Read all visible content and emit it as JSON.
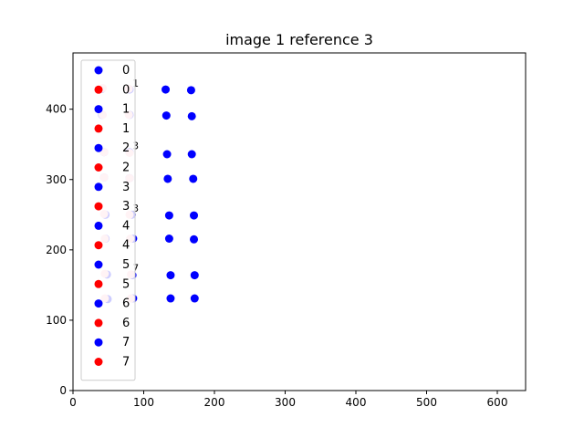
{
  "chart_data": {
    "type": "scatter",
    "title": "image 1 reference 3",
    "xlabel": "",
    "ylabel": "",
    "xlim": [
      0,
      640
    ],
    "ylim": [
      0,
      480
    ],
    "x_ticks": [
      0,
      100,
      200,
      300,
      400,
      500,
      600
    ],
    "y_ticks": [
      0,
      100,
      200,
      300,
      400
    ],
    "grid": false,
    "legend_position": "top-left",
    "colors": {
      "blue": "#0000ff",
      "red": "#ff0000",
      "pink": "#ffc0cb"
    },
    "legend": [
      {
        "label": "0",
        "color": "#0000ff"
      },
      {
        "label": "0",
        "color": "#ff0000"
      },
      {
        "label": "1",
        "color": "#0000ff"
      },
      {
        "label": "1",
        "color": "#ff0000"
      },
      {
        "label": "2",
        "color": "#0000ff"
      },
      {
        "label": "2",
        "color": "#ff0000"
      },
      {
        "label": "3",
        "color": "#0000ff"
      },
      {
        "label": "3",
        "color": "#ff0000"
      },
      {
        "label": "4",
        "color": "#0000ff"
      },
      {
        "label": "4",
        "color": "#ff0000"
      },
      {
        "label": "5",
        "color": "#0000ff"
      },
      {
        "label": "5",
        "color": "#ff0000"
      },
      {
        "label": "6",
        "color": "#0000ff"
      },
      {
        "label": "6",
        "color": "#ff0000"
      },
      {
        "label": "7",
        "color": "#0000ff"
      },
      {
        "label": "7",
        "color": "#ff0000"
      }
    ],
    "series": [
      {
        "color": "#0000ff",
        "points": [
          [
            41,
            429
          ],
          [
            80,
            428
          ],
          [
            131,
            428
          ],
          [
            167,
            427
          ],
          [
            41,
            392
          ],
          [
            80,
            392
          ],
          [
            132,
            391
          ],
          [
            168,
            390
          ],
          [
            44,
            339
          ],
          [
            80,
            339
          ],
          [
            133,
            336
          ],
          [
            168,
            336
          ],
          [
            44,
            303
          ],
          [
            80,
            302
          ],
          [
            134,
            301
          ],
          [
            170,
            301
          ],
          [
            46,
            250
          ],
          [
            83,
            250
          ],
          [
            136,
            249
          ],
          [
            171,
            249
          ],
          [
            46,
            216
          ],
          [
            85,
            216
          ],
          [
            136,
            216
          ],
          [
            171,
            215
          ],
          [
            48,
            165
          ],
          [
            84,
            164
          ],
          [
            138,
            164
          ],
          [
            172,
            164
          ],
          [
            49,
            130
          ],
          [
            85,
            131
          ],
          [
            138,
            131
          ],
          [
            172,
            131
          ]
        ]
      },
      {
        "color": "#ffc0cb",
        "points": [
          [
            42,
            430
          ],
          [
            79,
            429
          ],
          [
            42,
            392
          ],
          [
            79,
            392
          ],
          [
            44,
            339
          ],
          [
            80,
            338
          ],
          [
            44,
            303
          ],
          [
            80,
            302
          ],
          [
            44,
            251
          ],
          [
            80,
            250
          ],
          [
            45,
            216
          ],
          [
            81,
            216
          ],
          [
            45,
            166
          ],
          [
            82,
            165
          ],
          [
            45,
            131
          ],
          [
            82,
            131
          ]
        ]
      }
    ],
    "point_labels": [
      {
        "text": "1",
        "x": 84,
        "y": 432
      },
      {
        "text": "3",
        "x": 84,
        "y": 343
      },
      {
        "text": "3",
        "x": 84,
        "y": 254
      },
      {
        "text": "7",
        "x": 84,
        "y": 169
      }
    ]
  }
}
